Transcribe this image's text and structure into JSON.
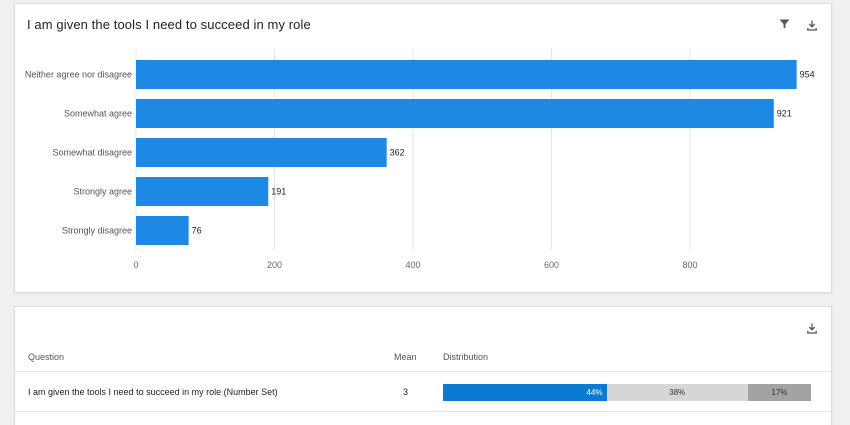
{
  "chart_card": {
    "title": "I am given the tools I need to succeed in my role",
    "filter_icon": "filter-icon",
    "download_icon": "download-icon"
  },
  "chart_data": {
    "type": "bar",
    "orientation": "horizontal",
    "categories": [
      "Neither agree nor disagree",
      "Somewhat agree",
      "Somewhat disagree",
      "Strongly agree",
      "Strongly disagree"
    ],
    "values": [
      954,
      921,
      362,
      191,
      76
    ],
    "xticks": [
      0,
      200,
      400,
      600,
      800
    ],
    "xlim": [
      0,
      1000
    ],
    "grid": true,
    "bar_color": "#1e88e5",
    "title": "I am given the tools I need to succeed in my role"
  },
  "table_card": {
    "download_icon": "download-icon",
    "headers": {
      "question": "Question",
      "mean": "Mean",
      "distribution": "Distribution"
    },
    "rows": [
      {
        "question": "I am given the tools I need to succeed in my role (Number Set)",
        "mean": "3",
        "distribution": [
          {
            "label": "44%",
            "value": 44,
            "color": "#0b7ad1"
          },
          {
            "label": "38%",
            "value": 38,
            "color": "#d6d6d6"
          },
          {
            "label": "17%",
            "value": 17,
            "color": "#a3a3a3"
          }
        ]
      }
    ]
  }
}
